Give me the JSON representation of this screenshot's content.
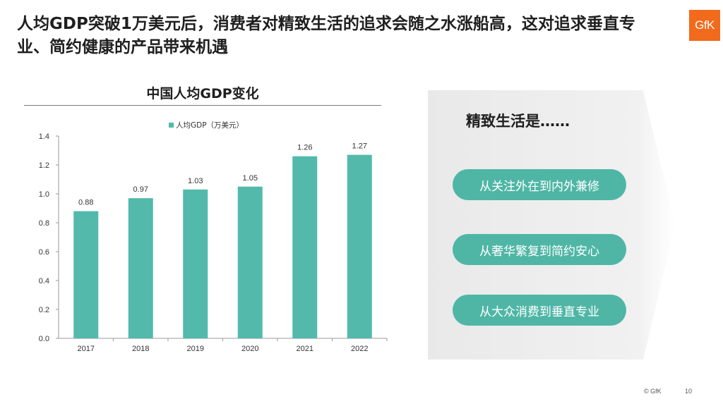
{
  "header": {
    "title": "人均GDP突破1万美元后，消费者对精致生活的追求会随之水涨船高，这对追求垂直专业、简约健康的产品带来机遇",
    "logo_text": "GfK",
    "brand_color": "#f26a1b"
  },
  "chart_data": {
    "type": "bar",
    "title": "中国人均GDP变化",
    "categories": [
      "2017",
      "2018",
      "2019",
      "2020",
      "2021",
      "2022"
    ],
    "series": [
      {
        "name": "人均GDP（万美元）",
        "values": [
          0.88,
          0.97,
          1.03,
          1.05,
          1.26,
          1.27
        ],
        "color": "#52b9ab"
      }
    ],
    "data_labels": [
      "0.88",
      "0.97",
      "1.03",
      "1.05",
      "1.26",
      "1.27"
    ],
    "ylim": [
      0,
      1.4
    ],
    "yticks": [
      "0.0",
      "0.2",
      "0.4",
      "0.6",
      "0.8",
      "1.0",
      "1.2",
      "1.4"
    ],
    "legend_position": "top",
    "grid": false
  },
  "panel": {
    "title": "精致生活是……",
    "items": [
      "从关注外在到内外兼修",
      "从奢华繁复到简约安心",
      "从大众消费到垂直专业"
    ],
    "pill_color": "#4fb6a6"
  },
  "footer": {
    "copyright": "© GfK",
    "page_number": "10"
  }
}
